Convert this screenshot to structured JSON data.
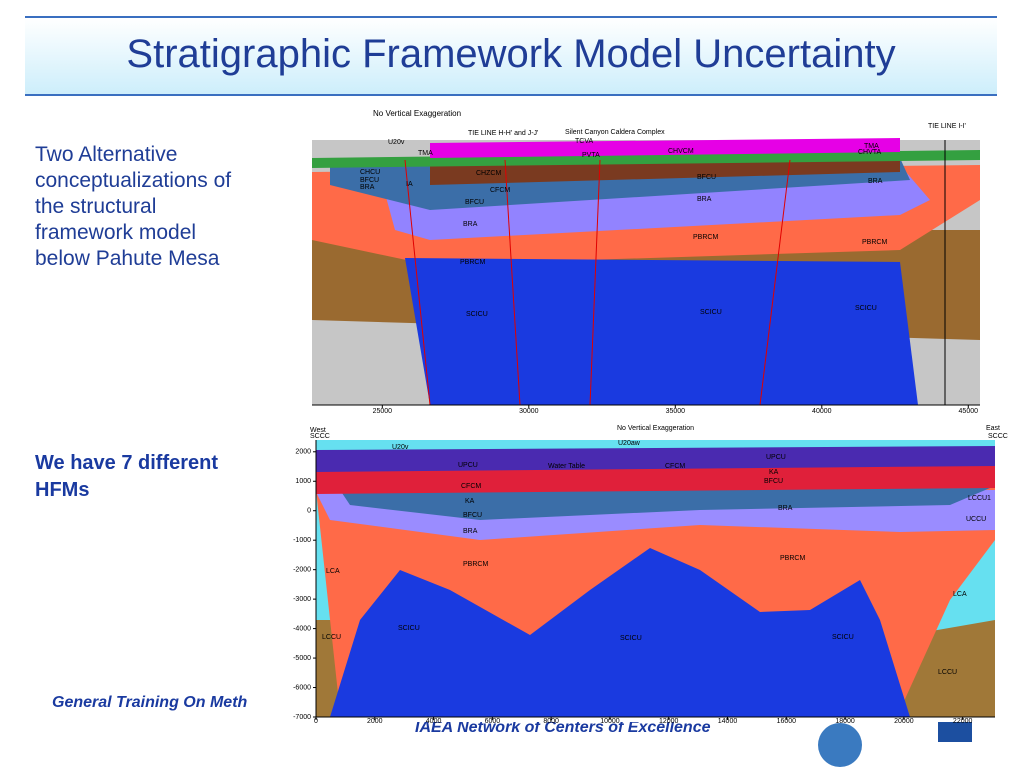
{
  "header": {
    "title": "Stratigraphic Framework Model Uncertainty"
  },
  "left_text": {
    "description": "Two Alternative conceptualizations of the structural framework model below Pahute Mesa",
    "highlight": "We have 7 different HFMs"
  },
  "figure_1": {
    "title": "No Vertical Exaggeration",
    "xlim": [
      22600,
      45400
    ],
    "xticks": [
      25000,
      30000,
      35000,
      40000,
      45000
    ],
    "labels": [
      "U20v",
      "TIE LINE H-H' and J-J'",
      "Silent Canyon Caldera Complex",
      "TCVA",
      "TMA",
      "CHCU",
      "BFCU",
      "BRA",
      "IA",
      "CHZCM",
      "CFCM",
      "BFCU",
      "BRA",
      "PBRCM",
      "SCICU",
      "PVTA",
      "CHVCM",
      "BFCU",
      "BRA",
      "PBRCM",
      "SCICU",
      "TMA",
      "CHVTA",
      "BRA",
      "PBRCM",
      "SCICU",
      "TIE LINE I-I'"
    ]
  },
  "figure_2": {
    "title": "No Vertical Exaggeration",
    "xlim": [
      0,
      23100
    ],
    "ylim": [
      -7000,
      2400
    ],
    "xticks": [
      0,
      2000,
      4000,
      6000,
      8000,
      10000,
      12000,
      14000,
      16000,
      18000,
      20000,
      22000
    ],
    "yticks": [
      2000,
      1000,
      0,
      -1000,
      -2000,
      -3000,
      -4000,
      -5000,
      -6000,
      -7000
    ],
    "labels": [
      "West",
      "SCCC",
      "U20v",
      "U20aw",
      "UPCU",
      "UPCU",
      "Water Table",
      "CFCM",
      "KA",
      "BFCU",
      "CFCM",
      "KA",
      "BFCU",
      "BRA",
      "BRA",
      "PBRCM",
      "PBRCM",
      "LCA",
      "LCA",
      "LCCU",
      "LCCU",
      "SCICU",
      "SCICU",
      "SCICU",
      "UCCU",
      "LCCU1",
      "East",
      "SCCC"
    ]
  },
  "footer": {
    "left": "General Training On Meth",
    "right": "IAEA Network of Centers of Excellence"
  }
}
